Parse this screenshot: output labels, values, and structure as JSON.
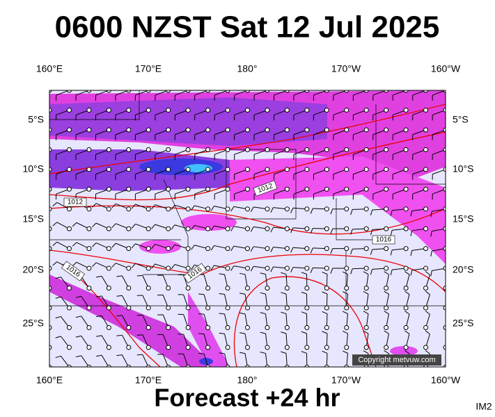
{
  "header": {
    "title": "0600 NZST Sat 12 Jul 2025"
  },
  "map": {
    "lon_labels_top": [
      "160°E",
      "170°E",
      "180°",
      "170°W",
      "160°W"
    ],
    "lon_labels_bottom": [
      "160°E",
      "170°E",
      "180°",
      "170°W",
      "160°W"
    ],
    "lat_labels_left": [
      "5°S",
      "10°S",
      "15°S",
      "20°S",
      "25°S"
    ],
    "lat_labels_right": [
      "5°S",
      "10°S",
      "15°S",
      "20°S",
      "25°S"
    ],
    "isobar_labels": [
      "1012",
      "1012",
      "1016",
      "1016",
      "1016"
    ],
    "copyright": "Copyright metvuw.com"
  },
  "footer": {
    "forecast": "Forecast +24 hr",
    "id": "IM2"
  }
}
